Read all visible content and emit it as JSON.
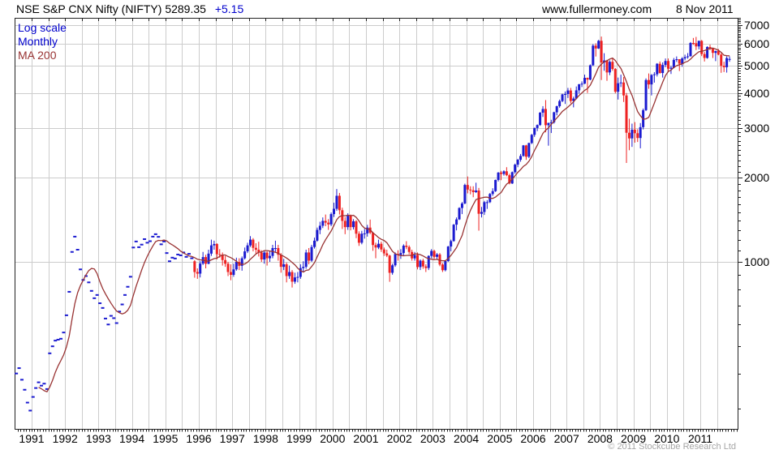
{
  "header": {
    "title": "NSE S&P CNX Nifty (NIFTY) 5289.35",
    "change": "+5.15",
    "website": "www.fullermoney.com",
    "date": "8 Nov 2011"
  },
  "legend": {
    "scale_label": "Log scale",
    "period_label": "Monthly",
    "ma_label": "MA 200"
  },
  "footer": {
    "copyright": "© 2011 Stockcube Research Ltd"
  },
  "colors": {
    "up_candle": "#1b1bd0",
    "down_candle": "#ee2222",
    "ma_line": "#993333",
    "grid": "#cccccc",
    "frame": "#222222",
    "legend_blue": "#0000cc",
    "change_blue": "#0000cc",
    "copyright_gray": "#a6a6a6"
  },
  "chart_data": {
    "type": "candlestick",
    "title": "NSE S&P CNX Nifty (NIFTY) — monthly candles, log scale, 200-day MA",
    "scale": "log",
    "period": "monthly",
    "legend_position": "top-left",
    "grid": true,
    "ylim": [
      250,
      7400
    ],
    "y_ticks": [
      7000,
      6000,
      5000,
      4000,
      3000,
      2000,
      1000
    ],
    "y_minor_tick_step": 100,
    "x_tick_labels": [
      "1991",
      "1992",
      "1993",
      "1994",
      "1995",
      "1996",
      "1997",
      "1998",
      "1999",
      "2000",
      "2001",
      "2002",
      "2003",
      "2004",
      "2005",
      "2006",
      "2007",
      "2008",
      "2009",
      "2010",
      "2011"
    ],
    "xlim_years": [
      1990.5,
      2012.0
    ],
    "ma_window_months": 9,
    "pre_candle_closes": {
      "note": "close-only monthly marks before candle data begins",
      "start_year": 1990,
      "start_month": 7,
      "closes": [
        400,
        418,
        380,
        350,
        315,
        295,
        330,
        355,
        372,
        362,
        368,
        352,
        472,
        500,
        524,
        528,
        532,
        560,
        645,
        782,
        1085,
        1230,
        1105,
        940,
        862,
        890,
        845,
        788,
        742,
        762,
        712,
        685,
        628,
        598,
        642,
        630,
        605,
        665,
        705,
        762,
        815,
        885,
        1125,
        1182,
        1128,
        1152,
        1205,
        1170,
        1185,
        1230,
        1255,
        1228,
        1155,
        1182,
        1075,
        1005,
        1035,
        1028,
        1062,
        1055,
        1080,
        1042,
        1068,
        1030
      ]
    },
    "monthly_ohlc": {
      "start_year": 1995,
      "start_month": 11,
      "values": [
        [
          1005,
          1015,
          878,
          920
        ],
        [
          920,
          948,
          870,
          908
        ],
        [
          908,
          1005,
          880,
          986
        ],
        [
          986,
          1085,
          975,
          1040
        ],
        [
          1040,
          1060,
          948,
          985
        ],
        [
          985,
          1105,
          980,
          1070
        ],
        [
          1070,
          1200,
          1050,
          1145
        ],
        [
          1145,
          1190,
          1105,
          1158
        ],
        [
          1158,
          1165,
          1020,
          1065
        ],
        [
          1065,
          1110,
          1035,
          1060
        ],
        [
          1060,
          1080,
          970,
          1015
        ],
        [
          1015,
          1050,
          960,
          985
        ],
        [
          985,
          1000,
          890,
          920
        ],
        [
          920,
          980,
          860,
          899
        ],
        [
          899,
          985,
          885,
          940
        ],
        [
          940,
          1035,
          930,
          1000
        ],
        [
          1000,
          1030,
          935,
          968
        ],
        [
          968,
          1045,
          930,
          1030
        ],
        [
          1030,
          1125,
          1020,
          1090
        ],
        [
          1090,
          1170,
          1075,
          1145
        ],
        [
          1145,
          1235,
          1130,
          1200
        ],
        [
          1200,
          1215,
          1090,
          1122
        ],
        [
          1122,
          1165,
          1070,
          1105
        ],
        [
          1105,
          1180,
          1045,
          1080
        ],
        [
          1080,
          1100,
          1000,
          1020
        ],
        [
          1020,
          1095,
          985,
          1079
        ],
        [
          1079,
          1090,
          970,
          1030
        ],
        [
          1030,
          1095,
          1000,
          1050
        ],
        [
          1050,
          1150,
          1030,
          1120
        ],
        [
          1120,
          1190,
          1085,
          1120
        ],
        [
          1120,
          1150,
          1010,
          1060
        ],
        [
          1060,
          1075,
          915,
          960
        ],
        [
          960,
          1025,
          935,
          980
        ],
        [
          980,
          995,
          845,
          890
        ],
        [
          890,
          970,
          870,
          920
        ],
        [
          920,
          935,
          810,
          850
        ],
        [
          850,
          915,
          835,
          880
        ],
        [
          880,
          920,
          845,
          884
        ],
        [
          884,
          980,
          870,
          950
        ],
        [
          950,
          1005,
          920,
          960
        ],
        [
          960,
          1105,
          945,
          1080
        ],
        [
          1080,
          1120,
          980,
          1010
        ],
        [
          1010,
          1150,
          1000,
          1130
        ],
        [
          1130,
          1220,
          1115,
          1190
        ],
        [
          1190,
          1325,
          1180,
          1300
        ],
        [
          1300,
          1390,
          1255,
          1345
        ],
        [
          1345,
          1440,
          1320,
          1400
        ],
        [
          1400,
          1475,
          1340,
          1380
        ],
        [
          1380,
          1420,
          1300,
          1360
        ],
        [
          1360,
          1500,
          1340,
          1480
        ],
        [
          1480,
          1625,
          1445,
          1546
        ],
        [
          1546,
          1818,
          1520,
          1720
        ],
        [
          1720,
          1760,
          1475,
          1528
        ],
        [
          1528,
          1560,
          1310,
          1400
        ],
        [
          1400,
          1445,
          1255,
          1330
        ],
        [
          1330,
          1490,
          1300,
          1460
        ],
        [
          1460,
          1475,
          1295,
          1330
        ],
        [
          1330,
          1420,
          1305,
          1395
        ],
        [
          1395,
          1410,
          1215,
          1260
        ],
        [
          1260,
          1285,
          1140,
          1170
        ],
        [
          1170,
          1290,
          1155,
          1260
        ],
        [
          1260,
          1310,
          1210,
          1263
        ],
        [
          1263,
          1355,
          1230,
          1325
        ],
        [
          1325,
          1415,
          1255,
          1270
        ],
        [
          1270,
          1280,
          1095,
          1148
        ],
        [
          1148,
          1170,
          1030,
          1125
        ],
        [
          1125,
          1200,
          1110,
          1160
        ],
        [
          1160,
          1180,
          1085,
          1107
        ],
        [
          1107,
          1125,
          1050,
          1072
        ],
        [
          1072,
          1105,
          1040,
          1053
        ],
        [
          1053,
          1060,
          849,
          914
        ],
        [
          914,
          985,
          900,
          972
        ],
        [
          972,
          1080,
          960,
          1067
        ],
        [
          1067,
          1100,
          1010,
          1059
        ],
        [
          1059,
          1110,
          1025,
          1075
        ],
        [
          1075,
          1155,
          1055,
          1142
        ],
        [
          1142,
          1185,
          1110,
          1130
        ],
        [
          1130,
          1145,
          1065,
          1085
        ],
        [
          1085,
          1105,
          1010,
          1029
        ],
        [
          1029,
          1085,
          1010,
          1058
        ],
        [
          1058,
          1080,
          940,
          958
        ],
        [
          958,
          1020,
          935,
          1010
        ],
        [
          1010,
          1025,
          945,
          963
        ],
        [
          963,
          980,
          920,
          951
        ],
        [
          951,
          1055,
          935,
          1050
        ],
        [
          1050,
          1110,
          1030,
          1094
        ],
        [
          1094,
          1105,
          1025,
          1042
        ],
        [
          1042,
          1075,
          1020,
          1063
        ],
        [
          1063,
          1075,
          965,
          978
        ],
        [
          978,
          990,
          920,
          934
        ],
        [
          934,
          1015,
          925,
          1007
        ],
        [
          1007,
          1140,
          1000,
          1134
        ],
        [
          1134,
          1200,
          1090,
          1186
        ],
        [
          1186,
          1365,
          1180,
          1357
        ],
        [
          1357,
          1440,
          1295,
          1417
        ],
        [
          1417,
          1565,
          1410,
          1556
        ],
        [
          1556,
          1635,
          1480,
          1615
        ],
        [
          1615,
          1900,
          1605,
          1880
        ],
        [
          1880,
          2015,
          1755,
          1810
        ],
        [
          1810,
          1860,
          1740,
          1800
        ],
        [
          1800,
          1860,
          1700,
          1772
        ],
        [
          1772,
          1915,
          1760,
          1796
        ],
        [
          1796,
          1835,
          1292,
          1484
        ],
        [
          1484,
          1570,
          1440,
          1506
        ],
        [
          1506,
          1650,
          1470,
          1632
        ],
        [
          1632,
          1660,
          1545,
          1632
        ],
        [
          1632,
          1760,
          1620,
          1746
        ],
        [
          1746,
          1830,
          1720,
          1787
        ],
        [
          1787,
          1965,
          1775,
          1959
        ],
        [
          1959,
          2090,
          1935,
          2081
        ],
        [
          2081,
          2110,
          1955,
          2058
        ],
        [
          2058,
          2120,
          2030,
          2103
        ],
        [
          2103,
          2175,
          2020,
          2036
        ],
        [
          2036,
          2060,
          1890,
          1903
        ],
        [
          1903,
          2100,
          1895,
          2088
        ],
        [
          2088,
          2240,
          2060,
          2221
        ],
        [
          2221,
          2330,
          2175,
          2312
        ],
        [
          2312,
          2425,
          2275,
          2385
        ],
        [
          2385,
          2610,
          2370,
          2601
        ],
        [
          2601,
          2615,
          2310,
          2370
        ],
        [
          2370,
          2660,
          2345,
          2652
        ],
        [
          2652,
          2860,
          2630,
          2837
        ],
        [
          2837,
          3010,
          2790,
          3001
        ],
        [
          3001,
          3090,
          2925,
          3075
        ],
        [
          3075,
          3420,
          3055,
          3403
        ],
        [
          3403,
          3590,
          3285,
          3508
        ],
        [
          3508,
          3774,
          2896,
          3071
        ],
        [
          3071,
          3135,
          2595,
          3128
        ],
        [
          3128,
          3210,
          2880,
          3143
        ],
        [
          3143,
          3430,
          3110,
          3414
        ],
        [
          3414,
          3605,
          3330,
          3588
        ],
        [
          3588,
          3790,
          3545,
          3744
        ],
        [
          3744,
          3975,
          3710,
          3955
        ],
        [
          3955,
          4050,
          3655,
          3966
        ],
        [
          3966,
          4170,
          3840,
          4083
        ],
        [
          4083,
          4170,
          3675,
          3745
        ],
        [
          3745,
          3880,
          3555,
          3822
        ],
        [
          3822,
          4220,
          3795,
          4088
        ],
        [
          4088,
          4310,
          3980,
          4296
        ],
        [
          4296,
          4400,
          4200,
          4318
        ],
        [
          4318,
          4650,
          4305,
          4529
        ],
        [
          4529,
          4540,
          4000,
          4464
        ],
        [
          4464,
          5055,
          4440,
          5021
        ],
        [
          5021,
          5975,
          4990,
          5901
        ],
        [
          5901,
          6012,
          5395,
          5763
        ],
        [
          5763,
          6185,
          5740,
          6139
        ],
        [
          6139,
          6357,
          4448,
          5137
        ],
        [
          5137,
          5545,
          4800,
          5224
        ],
        [
          5224,
          5250,
          4420,
          4735
        ],
        [
          4735,
          5230,
          4630,
          5166
        ],
        [
          5166,
          5300,
          4800,
          4870
        ],
        [
          4870,
          4910,
          3990,
          4041
        ],
        [
          4041,
          4540,
          3790,
          4333
        ],
        [
          4333,
          4650,
          4200,
          4360
        ],
        [
          4360,
          4560,
          3715,
          3921
        ],
        [
          3921,
          4000,
          2252,
          2886
        ],
        [
          2886,
          3240,
          2500,
          2755
        ],
        [
          2755,
          3110,
          2570,
          2959
        ],
        [
          2959,
          3150,
          2660,
          2875
        ],
        [
          2875,
          2970,
          2675,
          2764
        ],
        [
          2764,
          3125,
          2540,
          3021
        ],
        [
          3021,
          3520,
          2965,
          3474
        ],
        [
          3474,
          4509,
          3450,
          4449
        ],
        [
          4449,
          4695,
          4140,
          4291
        ],
        [
          4291,
          4670,
          3920,
          4636
        ],
        [
          4636,
          4745,
          4355,
          4662
        ],
        [
          4662,
          5110,
          4580,
          5084
        ],
        [
          5084,
          5180,
          4690,
          4712
        ],
        [
          4712,
          5140,
          4540,
          5033
        ],
        [
          5033,
          5310,
          4945,
          5201
        ],
        [
          5201,
          5310,
          4770,
          4882
        ],
        [
          4882,
          4995,
          4675,
          4922
        ],
        [
          4922,
          5330,
          4900,
          5249
        ],
        [
          5249,
          5400,
          5160,
          5278
        ],
        [
          5278,
          5280,
          4790,
          5086
        ],
        [
          5086,
          5370,
          4960,
          5313
        ],
        [
          5313,
          5480,
          5230,
          5368
        ],
        [
          5368,
          5550,
          5300,
          5403
        ],
        [
          5403,
          6075,
          5400,
          6030
        ],
        [
          6030,
          6285,
          5935,
          6018
        ],
        [
          6018,
          6338,
          5690,
          5863
        ],
        [
          5863,
          6150,
          5720,
          6135
        ],
        [
          6135,
          6180,
          5415,
          5506
        ],
        [
          5506,
          5600,
          5180,
          5333
        ],
        [
          5333,
          5870,
          5300,
          5834
        ],
        [
          5834,
          5945,
          5690,
          5750
        ],
        [
          5750,
          5775,
          5330,
          5560
        ],
        [
          5560,
          5660,
          5195,
          5647
        ],
        [
          5647,
          5740,
          5450,
          5482
        ],
        [
          5482,
          5552,
          4720,
          5001
        ],
        [
          5001,
          5170,
          4750,
          4943
        ],
        [
          4943,
          5400,
          4728,
          5327
        ],
        [
          5250,
          5400,
          5169,
          5289
        ]
      ]
    }
  }
}
